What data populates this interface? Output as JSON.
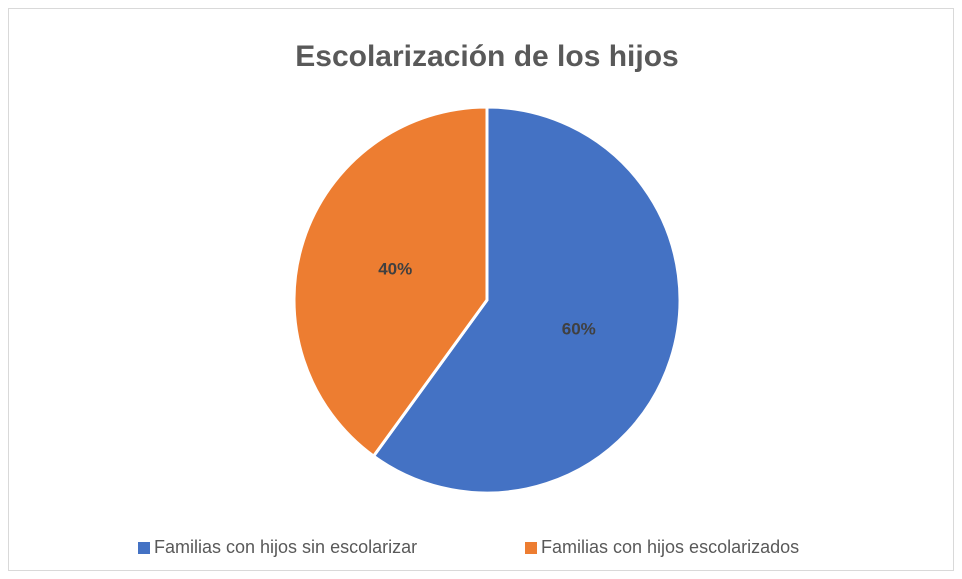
{
  "chart_data": {
    "type": "pie",
    "title": "Escolarización de los hijos",
    "categories": [
      "Familias con hijos sin escolarizar",
      "Familias con hijos escolarizados"
    ],
    "values": [
      60,
      40
    ],
    "value_labels": [
      "60%",
      "40%"
    ],
    "colors": [
      "#4472c4",
      "#ed7d31"
    ],
    "legend": "bottom"
  }
}
